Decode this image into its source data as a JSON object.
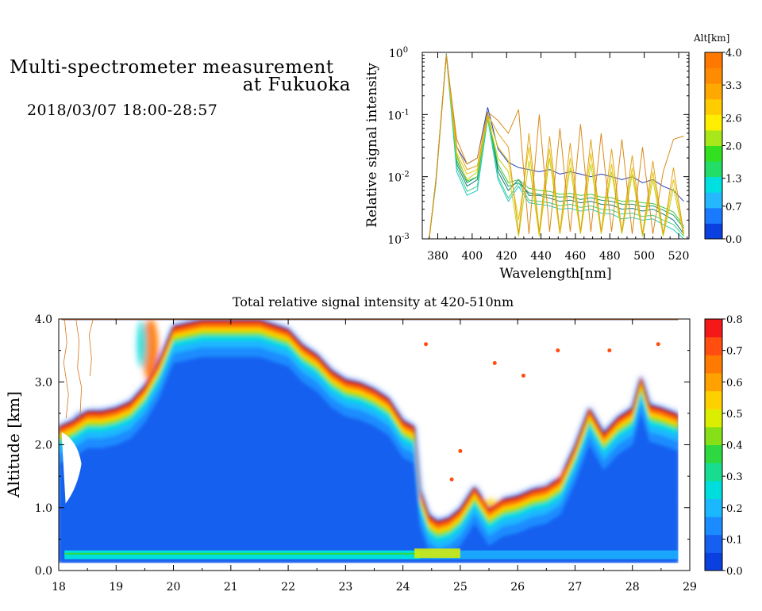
{
  "header": {
    "title_line1": "Multi-spectrometer measurement",
    "title_line2": "at Fukuoka",
    "subtitle": "2018/03/07 18:00-28:57"
  },
  "chart_data": [
    {
      "type": "line",
      "title": "",
      "xlabel": "Wavelength[nm]",
      "ylabel": "Relative signal intensity",
      "xlim": [
        371,
        526
      ],
      "ylim": [
        0.001,
        1
      ],
      "yscale": "log",
      "xticks": [
        380,
        400,
        420,
        440,
        460,
        480,
        500,
        520
      ],
      "xtick_labels": [
        "380",
        "400",
        "420",
        "440",
        "460",
        "480",
        "500",
        "520"
      ],
      "yticks": [
        0.001,
        0.01,
        0.1,
        1
      ],
      "ytick_labels": [
        {
          "base": "10",
          "exp": "-3"
        },
        {
          "base": "10",
          "exp": "-2"
        },
        {
          "base": "10",
          "exp": "-1"
        },
        {
          "base": "10",
          "exp": "0"
        }
      ],
      "x": [
        375,
        379,
        385,
        391,
        397,
        403,
        409,
        415,
        421,
        427,
        433,
        439,
        445,
        451,
        457,
        463,
        469,
        475,
        481,
        487,
        493,
        499,
        505,
        511,
        517,
        523
      ],
      "legend": {
        "title": "Alt[km]",
        "levels": [
          0.0,
          0.7,
          1.3,
          2.0,
          2.6,
          3.3,
          4.0
        ],
        "labels": [
          "0.0",
          "0.7",
          "1.3",
          "2.0",
          "2.6",
          "3.3",
          "4.0"
        ],
        "colors": [
          "#0a3fe0",
          "#1a7aff",
          "#25b8ff",
          "#00e0e0",
          "#22dd66",
          "#33e020",
          "#a8e81a",
          "#ffee00",
          "#ffcc00",
          "#ffa800",
          "#ff8c00",
          "#ff7800"
        ]
      },
      "series": [
        {
          "altitude": 0.2,
          "color": "#1f3fc6",
          "values": [
            0.001,
            0.009,
            0.95,
            0.03,
            0.016,
            0.02,
            0.13,
            0.028,
            0.017,
            0.014,
            0.013,
            0.012,
            0.013,
            0.011,
            0.012,
            0.011,
            0.01,
            0.011,
            0.01,
            0.009,
            0.01,
            0.008,
            0.009,
            0.007,
            0.006,
            0.004
          ]
        },
        {
          "altitude": 0.7,
          "color": "#127a7a",
          "values": [
            0.001,
            0.009,
            0.93,
            0.016,
            0.007,
            0.009,
            0.11,
            0.012,
            0.006,
            0.009,
            0.005,
            0.005,
            0.0045,
            0.004,
            0.0042,
            0.0038,
            0.004,
            0.0036,
            0.0035,
            0.003,
            0.0031,
            0.0028,
            0.003,
            0.0025,
            0.002,
            0.0012
          ]
        },
        {
          "altitude": 1.1,
          "color": "#1a9a66",
          "values": [
            0.001,
            0.009,
            0.92,
            0.018,
            0.008,
            0.01,
            0.1,
            0.014,
            0.007,
            0.008,
            0.0055,
            0.0052,
            0.005,
            0.0047,
            0.0048,
            0.0043,
            0.0046,
            0.0042,
            0.004,
            0.0036,
            0.0036,
            0.0033,
            0.0034,
            0.0029,
            0.0024,
            0.0015
          ]
        },
        {
          "altitude": 1.3,
          "color": "#25c8c8",
          "values": [
            0.001,
            0.008,
            0.9,
            0.012,
            0.005,
            0.006,
            0.085,
            0.009,
            0.004,
            0.007,
            0.0038,
            0.0036,
            0.0034,
            0.003,
            0.0031,
            0.0028,
            0.003,
            0.0026,
            0.0025,
            0.0021,
            0.0022,
            0.002,
            0.0021,
            0.0017,
            0.0014,
            0.0009
          ]
        },
        {
          "altitude": 1.7,
          "color": "#36d088",
          "values": [
            0.001,
            0.009,
            0.91,
            0.014,
            0.0058,
            0.007,
            0.09,
            0.01,
            0.0045,
            0.008,
            0.0042,
            0.004,
            0.0038,
            0.0034,
            0.0036,
            0.0032,
            0.0034,
            0.003,
            0.0029,
            0.0025,
            0.0026,
            0.0023,
            0.0024,
            0.002,
            0.0017,
            0.0011
          ]
        },
        {
          "altitude": 2.0,
          "color": "#46c83a",
          "values": [
            0.001,
            0.009,
            0.93,
            0.022,
            0.0085,
            0.01,
            0.1,
            0.016,
            0.008,
            0.009,
            0.0065,
            0.006,
            0.0058,
            0.0052,
            0.0054,
            0.005,
            0.0052,
            0.0047,
            0.0046,
            0.004,
            0.0041,
            0.0038,
            0.0037,
            0.0032,
            0.0027,
            0.0016
          ]
        },
        {
          "altitude": 2.6,
          "color": "#c2d21a",
          "values": [
            0.001,
            0.009,
            0.9,
            0.02,
            0.009,
            0.012,
            0.09,
            0.02,
            0.012,
            0.0011,
            0.018,
            0.0011,
            0.02,
            0.0012,
            0.014,
            0.0012,
            0.016,
            0.0012,
            0.012,
            0.0012,
            0.011,
            0.0011,
            0.009,
            0.0011,
            0.0065,
            0.0011
          ]
        },
        {
          "altitude": 3.0,
          "color": "#e6c400",
          "values": [
            0.001,
            0.009,
            0.9,
            0.024,
            0.011,
            0.013,
            0.095,
            0.03,
            0.018,
            0.002,
            0.03,
            0.0012,
            0.028,
            0.0012,
            0.02,
            0.0013,
            0.024,
            0.0013,
            0.016,
            0.0013,
            0.014,
            0.0012,
            0.012,
            0.0012,
            0.009,
            0.0012
          ]
        },
        {
          "altitude": 3.3,
          "color": "#e2a11a",
          "values": [
            0.001,
            0.009,
            0.88,
            0.03,
            0.013,
            0.015,
            0.1,
            0.05,
            0.03,
            0.0012,
            0.05,
            0.0013,
            0.045,
            0.0013,
            0.035,
            0.0013,
            0.04,
            0.0013,
            0.028,
            0.0013,
            0.022,
            0.0012,
            0.018,
            0.0012,
            0.014,
            0.0012
          ]
        },
        {
          "altitude": 3.8,
          "color": "#d98a1a",
          "values": [
            0.001,
            0.009,
            0.86,
            0.04,
            0.016,
            0.02,
            0.11,
            0.08,
            0.05,
            0.12,
            0.0012,
            0.1,
            0.0013,
            0.06,
            0.0013,
            0.07,
            0.0013,
            0.05,
            0.0013,
            0.04,
            0.0012,
            0.03,
            0.0012,
            0.012,
            0.04,
            0.045
          ]
        }
      ]
    },
    {
      "type": "heatmap",
      "title": "Total relative signal intensity at 420-510nm",
      "xlabel": "",
      "ylabel": "Altitude [km]",
      "xlim": [
        18,
        29
      ],
      "ylim": [
        0.0,
        4.0
      ],
      "xticks": [
        18,
        19,
        20,
        21,
        22,
        23,
        24,
        25,
        26,
        27,
        28,
        29
      ],
      "xtick_labels": [
        "18",
        "19",
        "20",
        "21",
        "22",
        "23",
        "24",
        "25",
        "26",
        "27",
        "28",
        "29"
      ],
      "yticks": [
        0.0,
        1.0,
        2.0,
        3.0,
        4.0
      ],
      "ytick_labels": [
        "0.0",
        "1.0",
        "2.0",
        "3.0",
        "4.0"
      ],
      "colorbar": {
        "range": [
          0.0,
          0.8
        ],
        "labels": [
          "0.0",
          "0.1",
          "0.2",
          "0.3",
          "0.4",
          "0.5",
          "0.6",
          "0.7",
          "0.8"
        ],
        "colors": [
          "#0a3fe0",
          "#1560f0",
          "#1a8cff",
          "#1cb8ff",
          "#00dddd",
          "#18dd90",
          "#2ed840",
          "#86e018",
          "#dcee00",
          "#ffd000",
          "#ffa200",
          "#ff7a00",
          "#ff4e10",
          "#f41818"
        ]
      },
      "cloud_base_km": {
        "time": [
          18.0,
          18.25,
          18.5,
          18.75,
          19.0,
          19.25,
          19.5,
          19.75,
          20.0,
          20.5,
          21.0,
          21.5,
          22.0,
          22.25,
          22.5,
          22.75,
          23.0,
          23.25,
          23.5,
          23.75,
          24.0,
          24.2,
          24.3,
          24.45,
          24.6,
          24.8,
          25.0,
          25.25,
          25.5,
          25.75,
          26.0,
          26.25,
          26.5,
          26.75,
          27.0,
          27.25,
          27.5,
          27.75,
          28.0,
          28.15,
          28.3,
          28.5,
          28.8
        ],
        "height": [
          2.3,
          2.4,
          2.55,
          2.55,
          2.6,
          2.7,
          2.95,
          3.35,
          3.9,
          4.0,
          4.0,
          4.0,
          3.85,
          3.6,
          3.45,
          3.2,
          3.05,
          3.0,
          2.9,
          2.75,
          2.4,
          2.3,
          1.3,
          0.9,
          0.8,
          0.85,
          1.0,
          1.35,
          1.0,
          1.15,
          1.2,
          1.3,
          1.35,
          1.5,
          2.0,
          2.6,
          2.2,
          2.45,
          2.6,
          3.1,
          2.65,
          2.6,
          2.5
        ]
      }
    }
  ]
}
